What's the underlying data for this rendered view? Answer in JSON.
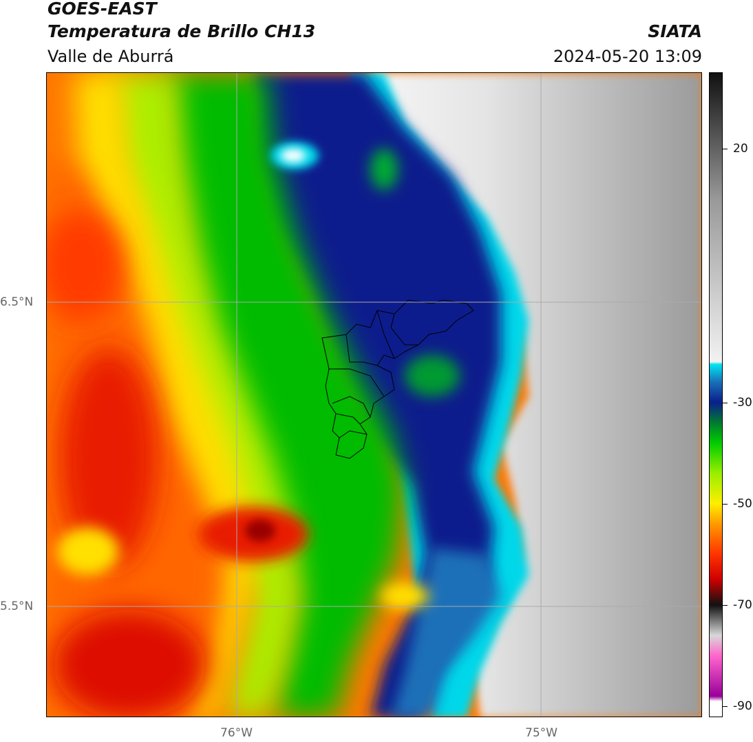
{
  "header": {
    "satellite": "GOES-EAST",
    "product": "Temperatura de Brillo CH13",
    "region": "Valle de Aburrá",
    "organization": "SIATA",
    "datetime": "2024-05-20 13:09"
  },
  "map": {
    "lat_labels": [
      "6.5°N",
      "5.5°N"
    ],
    "lon_labels": [
      "76°W",
      "75°W"
    ],
    "colors": {
      "gridline": "#aaaaaa",
      "boundary": "#000000"
    }
  },
  "colorbar": {
    "ticks": [
      "20",
      "-30",
      "-50",
      "-70",
      "-90"
    ],
    "tick_values": [
      20,
      -30,
      -50,
      -70,
      -90
    ],
    "range": [
      -92,
      35
    ],
    "stops": [
      {
        "value": 35,
        "color": "#111111"
      },
      {
        "value": 10,
        "color": "#999999"
      },
      {
        "value": -22,
        "color": "#f2f2f2"
      },
      {
        "value": -22.5,
        "color": "#00e5ee"
      },
      {
        "value": -26,
        "color": "#1a6fb8"
      },
      {
        "value": -30,
        "color": "#0a1f8c"
      },
      {
        "value": -34,
        "color": "#007a30"
      },
      {
        "value": -38,
        "color": "#00cc00"
      },
      {
        "value": -44,
        "color": "#99ee00"
      },
      {
        "value": -50,
        "color": "#ffee00"
      },
      {
        "value": -54,
        "color": "#ff9900"
      },
      {
        "value": -60,
        "color": "#ff3300"
      },
      {
        "value": -65,
        "color": "#cc0000"
      },
      {
        "value": -70,
        "color": "#111111"
      },
      {
        "value": -76,
        "color": "#d8d8d8"
      },
      {
        "value": -80,
        "color": "#ff66cc"
      },
      {
        "value": -88,
        "color": "#990099"
      },
      {
        "value": -89,
        "color": "#ffffff"
      }
    ]
  }
}
